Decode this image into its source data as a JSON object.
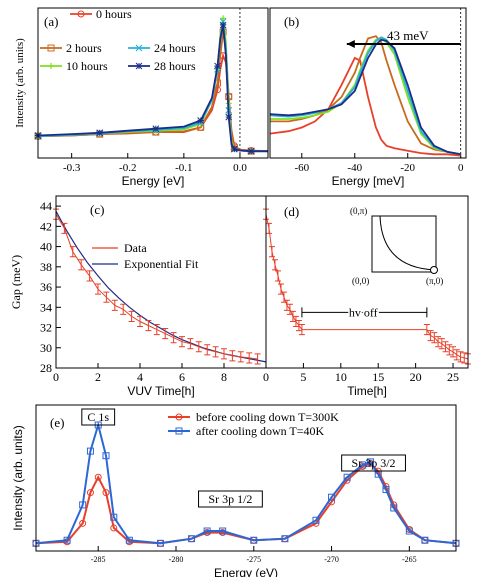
{
  "chart_data": [
    {
      "panel": "(a)",
      "type": "line",
      "xlabel": "Energy [eV]",
      "ylabel": "Intensity (arb. units)",
      "xlim": [
        -0.36,
        0.05
      ],
      "xticks": [
        "-0.3",
        "-0.2",
        "-0.1",
        "0.0"
      ],
      "series": [
        {
          "name": "0 hours",
          "color": "#e8402a",
          "marker": "circle",
          "x": [
            -0.36,
            -0.3,
            -0.25,
            -0.2,
            -0.15,
            -0.1,
            -0.07,
            -0.05,
            -0.04,
            -0.035,
            -0.03,
            -0.025,
            -0.02,
            -0.015,
            -0.01,
            0.0,
            0.02,
            0.05
          ],
          "y": [
            0.32,
            0.33,
            0.35,
            0.36,
            0.38,
            0.38,
            0.45,
            0.7,
            1.0,
            1.3,
            1.5,
            1.4,
            0.9,
            0.4,
            0.18,
            0.12,
            0.11,
            0.1
          ]
        },
        {
          "name": "2 hours",
          "color": "#c86a1e",
          "marker": "square",
          "x": [
            -0.36,
            -0.3,
            -0.25,
            -0.2,
            -0.15,
            -0.1,
            -0.07,
            -0.05,
            -0.04,
            -0.035,
            -0.03,
            -0.025,
            -0.02,
            -0.015,
            -0.01,
            0.0,
            0.02,
            0.05
          ],
          "y": [
            0.32,
            0.33,
            0.35,
            0.37,
            0.38,
            0.39,
            0.45,
            0.75,
            1.1,
            1.5,
            1.85,
            1.6,
            0.9,
            0.35,
            0.15,
            0.11,
            0.1,
            0.1
          ]
        },
        {
          "name": "10 hours",
          "color": "#7fe020",
          "marker": "plus",
          "x": [
            -0.36,
            -0.3,
            -0.25,
            -0.2,
            -0.15,
            -0.1,
            -0.07,
            -0.05,
            -0.04,
            -0.035,
            -0.03,
            -0.025,
            -0.02,
            -0.015,
            -0.01,
            0.0,
            0.02,
            0.05
          ],
          "y": [
            0.32,
            0.34,
            0.36,
            0.38,
            0.4,
            0.42,
            0.5,
            0.85,
            1.3,
            1.8,
            2.05,
            1.7,
            0.8,
            0.25,
            0.13,
            0.11,
            0.1,
            0.1
          ]
        },
        {
          "name": "24 hours",
          "color": "#28b0d8",
          "marker": "cross",
          "x": [
            -0.36,
            -0.3,
            -0.25,
            -0.2,
            -0.15,
            -0.1,
            -0.07,
            -0.05,
            -0.04,
            -0.035,
            -0.03,
            -0.025,
            -0.02,
            -0.015,
            -0.01,
            0.0,
            0.02,
            0.05
          ],
          "y": [
            0.32,
            0.34,
            0.36,
            0.39,
            0.41,
            0.44,
            0.52,
            0.85,
            1.3,
            1.75,
            2.0,
            1.6,
            0.7,
            0.22,
            0.13,
            0.11,
            0.1,
            0.1
          ]
        },
        {
          "name": "28 hours",
          "color": "#1c2d86",
          "marker": "star",
          "x": [
            -0.36,
            -0.3,
            -0.25,
            -0.2,
            -0.15,
            -0.1,
            -0.07,
            -0.05,
            -0.04,
            -0.035,
            -0.03,
            -0.025,
            -0.02,
            -0.015,
            -0.01,
            0.0,
            0.02,
            0.05
          ],
          "y": [
            0.33,
            0.35,
            0.37,
            0.4,
            0.43,
            0.46,
            0.55,
            0.88,
            1.35,
            1.75,
            1.95,
            1.5,
            0.6,
            0.2,
            0.13,
            0.11,
            0.1,
            0.1
          ]
        }
      ]
    },
    {
      "panel": "(b)",
      "type": "line",
      "xlabel": "Energy [meV]",
      "xlim": [
        -72,
        2
      ],
      "xticks": [
        "-60",
        "-40",
        "-20",
        "0"
      ],
      "annotation": "43 meV",
      "series": [
        {
          "name": "0 hours",
          "color": "#e8402a",
          "x": [
            -72,
            -65,
            -60,
            -55,
            -50,
            -45,
            -40,
            -38,
            -35,
            -32,
            -30,
            -28,
            -25,
            -20,
            -15,
            -10,
            -5,
            0
          ],
          "y": [
            0.2,
            0.22,
            0.25,
            0.3,
            0.4,
            0.6,
            0.82,
            0.8,
            0.5,
            0.25,
            0.15,
            0.1,
            0.08,
            0.06,
            0.04,
            0.03,
            0.03,
            0.02
          ]
        },
        {
          "name": "2 hours",
          "color": "#c86a1e",
          "x": [
            -72,
            -65,
            -60,
            -55,
            -50,
            -45,
            -40,
            -38,
            -35,
            -32,
            -30,
            -28,
            -25,
            -20,
            -15,
            -10,
            -5,
            0
          ],
          "y": [
            0.3,
            0.3,
            0.32,
            0.35,
            0.4,
            0.5,
            0.7,
            0.82,
            0.98,
            1.0,
            0.95,
            0.8,
            0.6,
            0.3,
            0.12,
            0.07,
            0.05,
            0.03
          ]
        },
        {
          "name": "10 hours",
          "color": "#7fe020",
          "x": [
            -72,
            -65,
            -60,
            -55,
            -50,
            -45,
            -40,
            -38,
            -35,
            -32,
            -30,
            -28,
            -25,
            -20,
            -15,
            -10,
            -5,
            0
          ],
          "y": [
            0.32,
            0.32,
            0.33,
            0.35,
            0.38,
            0.45,
            0.6,
            0.72,
            0.88,
            0.97,
            0.98,
            0.95,
            0.85,
            0.5,
            0.2,
            0.08,
            0.05,
            0.03
          ]
        },
        {
          "name": "24 hours",
          "color": "#28b0d8",
          "x": [
            -72,
            -65,
            -60,
            -55,
            -50,
            -45,
            -40,
            -38,
            -35,
            -32,
            -30,
            -28,
            -25,
            -20,
            -15,
            -10,
            -5,
            0
          ],
          "y": [
            0.35,
            0.34,
            0.35,
            0.37,
            0.4,
            0.45,
            0.58,
            0.7,
            0.86,
            0.96,
            0.99,
            0.97,
            0.88,
            0.55,
            0.22,
            0.09,
            0.05,
            0.03
          ]
        },
        {
          "name": "28 hours",
          "color": "#1c2d86",
          "x": [
            -72,
            -65,
            -60,
            -55,
            -50,
            -45,
            -40,
            -38,
            -35,
            -32,
            -30,
            -28,
            -25,
            -20,
            -15,
            -10,
            -5,
            0
          ],
          "y": [
            0.36,
            0.35,
            0.36,
            0.38,
            0.4,
            0.44,
            0.55,
            0.66,
            0.82,
            0.93,
            0.97,
            0.96,
            0.9,
            0.6,
            0.25,
            0.1,
            0.05,
            0.03
          ]
        }
      ]
    },
    {
      "panel": "(c)",
      "type": "line",
      "xlabel": "VUV Time[h]",
      "ylabel": "Gap (meV)",
      "xlim": [
        0,
        10
      ],
      "ylim": [
        28,
        45
      ],
      "xticks": [
        "0",
        "2",
        "4",
        "6",
        "8"
      ],
      "yticks": [
        "28",
        "30",
        "32",
        "34",
        "36",
        "38",
        "40",
        "42",
        "44"
      ],
      "series": [
        {
          "name": "Data",
          "color": "#e8402a",
          "x": [
            0,
            0.4,
            0.8,
            1.2,
            1.6,
            2,
            2.4,
            2.8,
            3.2,
            3.6,
            4,
            4.4,
            4.8,
            5.2,
            5.6,
            6,
            6.4,
            6.8,
            7.2,
            7.6,
            8,
            8.4,
            8.8,
            9.2,
            9.6
          ],
          "y": [
            43.2,
            41.8,
            39.5,
            38.2,
            37.1,
            35.8,
            35.0,
            34.2,
            33.8,
            33.1,
            32.6,
            32.2,
            31.8,
            31.4,
            31.0,
            30.6,
            30.4,
            30.1,
            29.8,
            29.6,
            29.4,
            29.2,
            29.1,
            29.0,
            28.9
          ]
        },
        {
          "name": "Exponential Fit",
          "color": "#1c2d86",
          "x": [
            0,
            0.5,
            1,
            1.5,
            2,
            2.5,
            3,
            3.5,
            4,
            4.5,
            5,
            5.5,
            6,
            6.5,
            7,
            7.5,
            8,
            8.5,
            9,
            9.5,
            10
          ],
          "y": [
            43.5,
            41.6,
            39.9,
            38.4,
            37.1,
            35.9,
            34.9,
            34.0,
            33.2,
            32.5,
            31.9,
            31.3,
            30.8,
            30.4,
            30.0,
            29.7,
            29.4,
            29.2,
            29.0,
            28.8,
            28.6
          ]
        }
      ]
    },
    {
      "panel": "(d)",
      "type": "line",
      "xlabel": "Time[h]",
      "xlim": [
        0,
        27
      ],
      "xticks": [
        "0",
        "5",
        "10",
        "15",
        "20",
        "25"
      ],
      "annotation": "hv  off",
      "inset_labels": {
        "top_left": "(0,π)",
        "bottom_left": "(0,0)",
        "bottom_right": "(π,0)"
      },
      "series": [
        {
          "name": "",
          "color": "#e8402a",
          "x": [
            0,
            0.4,
            0.8,
            1.2,
            1.6,
            2,
            2.4,
            2.8,
            3.2,
            3.6,
            4,
            4.4,
            4.8,
            21.5,
            22,
            22.5,
            23,
            23.5,
            24,
            24.5,
            25,
            25.5,
            26,
            26.5,
            27
          ],
          "y": [
            43.2,
            41.8,
            39.5,
            38.2,
            37.1,
            35.8,
            35.0,
            34.2,
            33.8,
            33.1,
            32.6,
            32.2,
            31.8,
            31.8,
            31.2,
            31.0,
            30.6,
            30.4,
            30.1,
            29.8,
            29.6,
            29.3,
            29.1,
            29.0,
            28.9
          ]
        }
      ]
    },
    {
      "panel": "(e)",
      "type": "line",
      "xlabel": "Energy (eV)",
      "ylabel": "Intensity (arb. units)",
      "xlim": [
        -289,
        -262
      ],
      "xticks": [
        "-285",
        "-280",
        "-275",
        "-270",
        "-265"
      ],
      "peak_labels": [
        "C 1s",
        "Sr 3p 1/2",
        "Sr 3p 3/2"
      ],
      "series": [
        {
          "name": "before cooling down T=300K",
          "color": "#e8402a",
          "marker": "circle",
          "x": [
            -289,
            -287,
            -286,
            -285.5,
            -285,
            -284.5,
            -284,
            -283,
            -281,
            -279,
            -278,
            -277,
            -275,
            -273,
            -271,
            -270,
            -269,
            -268,
            -267.5,
            -267,
            -266.5,
            -266,
            -265,
            -264,
            -262
          ],
          "y": [
            0.05,
            0.06,
            0.18,
            0.38,
            0.48,
            0.38,
            0.15,
            0.06,
            0.05,
            0.08,
            0.12,
            0.12,
            0.07,
            0.08,
            0.18,
            0.32,
            0.46,
            0.55,
            0.57,
            0.52,
            0.42,
            0.3,
            0.14,
            0.07,
            0.05
          ]
        },
        {
          "name": "after cooling down T=40K",
          "color": "#2c67d6",
          "marker": "square",
          "x": [
            -289,
            -287,
            -286,
            -285.5,
            -285,
            -284.5,
            -284,
            -283,
            -281,
            -279,
            -278,
            -277,
            -275,
            -273,
            -271,
            -270,
            -269,
            -268,
            -267.5,
            -267,
            -266.5,
            -266,
            -265,
            -264,
            -262
          ],
          "y": [
            0.05,
            0.07,
            0.3,
            0.65,
            0.82,
            0.62,
            0.22,
            0.07,
            0.05,
            0.08,
            0.13,
            0.13,
            0.07,
            0.08,
            0.2,
            0.35,
            0.48,
            0.56,
            0.58,
            0.5,
            0.4,
            0.28,
            0.13,
            0.07,
            0.05
          ]
        }
      ]
    }
  ]
}
